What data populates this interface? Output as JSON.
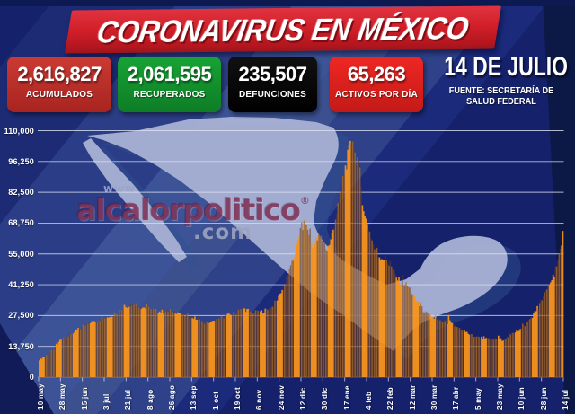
{
  "header": {
    "title": "CORONAVIRUS EN MÉXICO",
    "date": "14 DE JULIO",
    "source_line1": "FUENTE: SECRETARÍA DE",
    "source_line2": "SALUD FEDERAL"
  },
  "stats": [
    {
      "value": "2,616,827",
      "label": "ACUMULADOS",
      "bg": "linear-gradient(180deg,#cb3a33,#a82420)"
    },
    {
      "value": "2,061,595",
      "label": "RECUPERADOS",
      "bg": "linear-gradient(180deg,#17a335,#0e7d26)"
    },
    {
      "value": "235,507",
      "label": "DEFUNCIONES",
      "bg": "linear-gradient(180deg,#111,#000)"
    },
    {
      "value": "65,263",
      "label": "ACTIVOS POR DÍA",
      "bg": "linear-gradient(180deg,#ef2723,#c31a17)"
    }
  ],
  "watermark": {
    "prefix": "www.",
    "name": "alcalorpolitico",
    "registered": "®",
    "suffix": ".com"
  },
  "chart_data": {
    "type": "bar",
    "series_name": "Activos por día",
    "categories": [
      "10 may",
      "28 may",
      "15 jun",
      "3 jul",
      "21 jul",
      "8 ago",
      "26 ago",
      "13 sep",
      "1 oct",
      "19 oct",
      "6 nov",
      "24 nov",
      "12 dic",
      "30 dic",
      "17 ene",
      "4 feb",
      "22 feb",
      "12 mar",
      "30 mar",
      "17 abr",
      "5 may",
      "23 may",
      "10 jun",
      "28 jun",
      "14 jul"
    ],
    "values": [
      7700,
      16500,
      22500,
      26200,
      31500,
      30600,
      29800,
      26600,
      24600,
      28600,
      28600,
      36200,
      66500,
      60500,
      93000,
      68500,
      50500,
      38500,
      26600,
      22900,
      18100,
      17100,
      21200,
      34600,
      65263
    ],
    "peak": {
      "near": "17 ene",
      "value": 107000
    },
    "last_value": 65263,
    "ylim": [
      0,
      110000
    ],
    "yticks": [
      13750,
      27500,
      41250,
      55000,
      68750,
      82500,
      96250,
      110000
    ],
    "ytick_labels": [
      "13,750",
      "27,500",
      "41,250",
      "55,000",
      "68,750",
      "82,500",
      "96,250",
      "110,000"
    ],
    "ytick_zero_label": "0",
    "grid": true,
    "grid_color": "#dde2f0",
    "bar_colors": {
      "bright": "#f7941c",
      "mid": "#b06a1e",
      "dark": "#6b3c1e"
    },
    "profile": [
      [
        0,
        7700
      ],
      [
        6,
        9800
      ],
      [
        12,
        12500
      ],
      [
        18,
        16500
      ],
      [
        24,
        18500
      ],
      [
        30,
        20500
      ],
      [
        36,
        22500
      ],
      [
        42,
        24000
      ],
      [
        48,
        25000
      ],
      [
        54,
        26200
      ],
      [
        60,
        27500
      ],
      [
        66,
        29500
      ],
      [
        72,
        31500
      ],
      [
        78,
        32800
      ],
      [
        84,
        31200
      ],
      [
        90,
        30600
      ],
      [
        96,
        29400
      ],
      [
        102,
        29000
      ],
      [
        108,
        29800
      ],
      [
        114,
        28800
      ],
      [
        120,
        27600
      ],
      [
        126,
        26600
      ],
      [
        132,
        25200
      ],
      [
        138,
        23900
      ],
      [
        144,
        24600
      ],
      [
        150,
        26600
      ],
      [
        156,
        27600
      ],
      [
        162,
        28600
      ],
      [
        168,
        30400
      ],
      [
        174,
        29200
      ],
      [
        180,
        28600
      ],
      [
        186,
        29600
      ],
      [
        192,
        31200
      ],
      [
        198,
        36200
      ],
      [
        203,
        42000
      ],
      [
        208,
        50000
      ],
      [
        213,
        60000
      ],
      [
        216,
        66500
      ],
      [
        219,
        68500
      ],
      [
        222,
        64000
      ],
      [
        225,
        57500
      ],
      [
        228,
        60500
      ],
      [
        231,
        62500
      ],
      [
        234,
        60500
      ],
      [
        237,
        56500
      ],
      [
        240,
        60500
      ],
      [
        243,
        68000
      ],
      [
        246,
        76000
      ],
      [
        249,
        85000
      ],
      [
        252,
        93000
      ],
      [
        255,
        100000
      ],
      [
        258,
        107000
      ],
      [
        260,
        99000
      ],
      [
        262,
        97000
      ],
      [
        264,
        90500
      ],
      [
        266,
        79000
      ],
      [
        268,
        71000
      ],
      [
        270,
        68500
      ],
      [
        273,
        62500
      ],
      [
        276,
        57000
      ],
      [
        279,
        54000
      ],
      [
        282,
        53000
      ],
      [
        285,
        52400
      ],
      [
        288,
        50500
      ],
      [
        291,
        47500
      ],
      [
        294,
        44000
      ],
      [
        297,
        42500
      ],
      [
        300,
        42000
      ],
      [
        303,
        40500
      ],
      [
        306,
        38500
      ],
      [
        309,
        34800
      ],
      [
        311,
        33200
      ],
      [
        315,
        30500
      ],
      [
        318,
        28500
      ],
      [
        321,
        27200
      ],
      [
        324,
        26600
      ],
      [
        327,
        25600
      ],
      [
        330,
        24600
      ],
      [
        333,
        24100
      ],
      [
        336,
        23900
      ],
      [
        337,
        26800
      ],
      [
        339,
        23600
      ],
      [
        342,
        22900
      ],
      [
        345,
        22100
      ],
      [
        348,
        21100
      ],
      [
        351,
        20100
      ],
      [
        354,
        19100
      ],
      [
        357,
        18400
      ],
      [
        360,
        18100
      ],
      [
        363,
        17800
      ],
      [
        366,
        17300
      ],
      [
        369,
        16900
      ],
      [
        372,
        16600
      ],
      [
        375,
        16900
      ],
      [
        378,
        17100
      ],
      [
        381,
        16600
      ],
      [
        384,
        17300
      ],
      [
        387,
        18300
      ],
      [
        390,
        19600
      ],
      [
        393,
        20600
      ],
      [
        396,
        21200
      ],
      [
        399,
        22600
      ],
      [
        402,
        24600
      ],
      [
        405,
        26600
      ],
      [
        408,
        28600
      ],
      [
        411,
        31200
      ],
      [
        414,
        34600
      ],
      [
        417,
        37800
      ],
      [
        420,
        41200
      ],
      [
        423,
        44800
      ],
      [
        426,
        48800
      ],
      [
        428,
        53200
      ],
      [
        430,
        58500
      ],
      [
        431,
        65263
      ]
    ]
  }
}
